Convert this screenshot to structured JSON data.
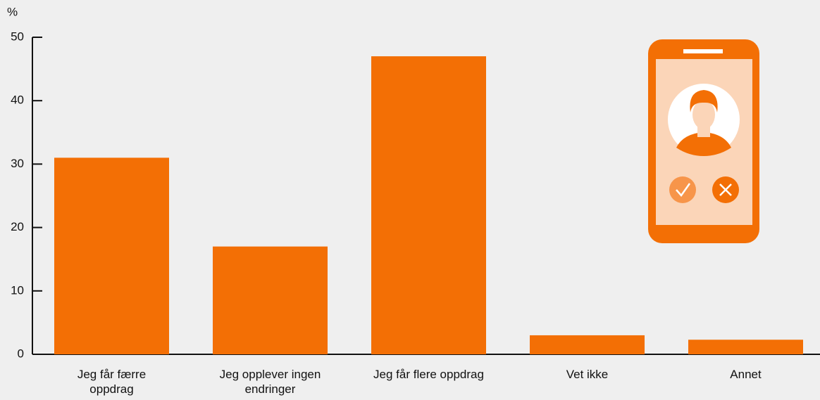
{
  "chart_data": {
    "type": "bar",
    "y_label": "%",
    "categories": [
      "Jeg får færre oppdrag",
      "Jeg opplever ingen endringer",
      "Jeg får flere oppdrag",
      "Vet ikke",
      "Annet"
    ],
    "values": [
      31,
      17,
      47,
      3,
      2.3
    ],
    "color": "#f36f05",
    "ylim": [
      0,
      50
    ],
    "yticks": [
      0,
      10,
      20,
      30,
      40,
      50
    ]
  }
}
